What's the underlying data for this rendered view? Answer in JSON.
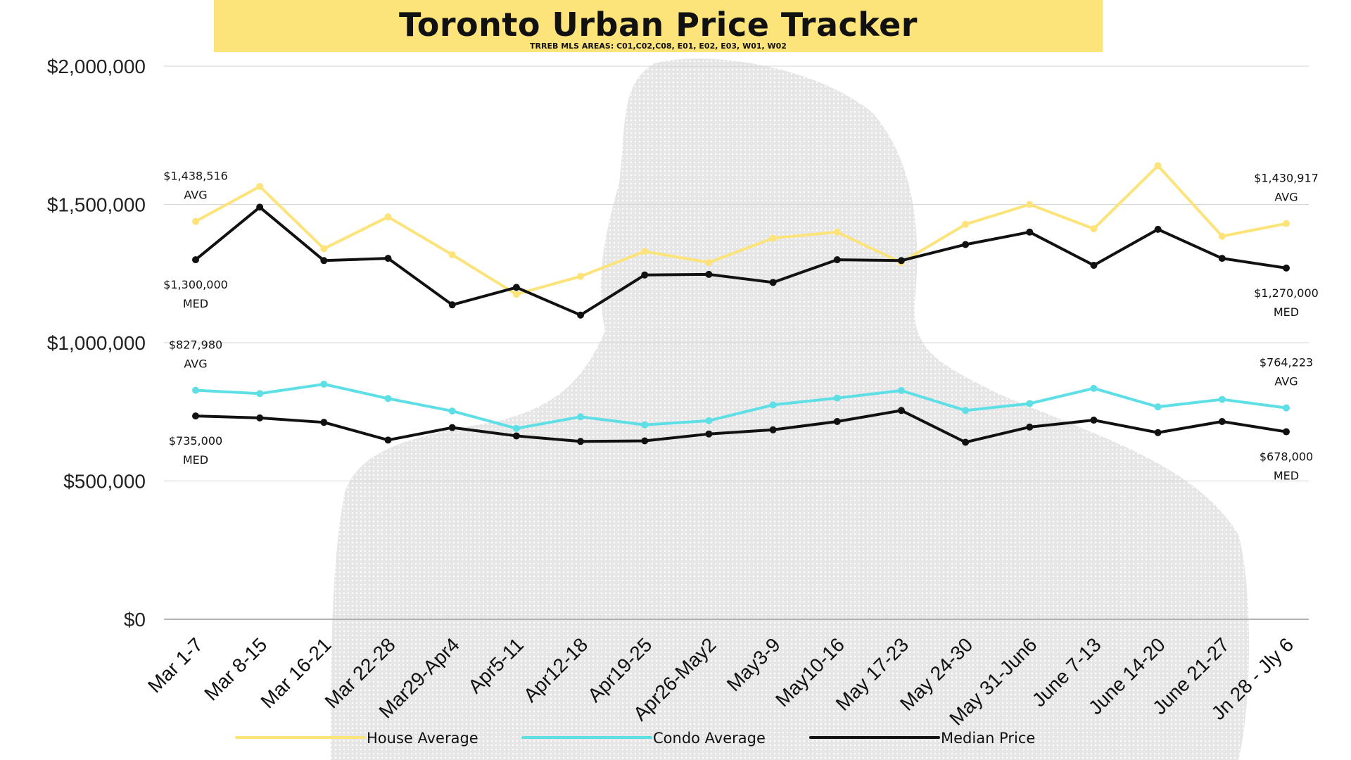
{
  "chart_data": {
    "type": "line",
    "title": "Toronto Urban Price Tracker",
    "subtitle": "TRREB MLS AREAS: C01,C02,C08, E01, E02, E03, W01, W02",
    "ylim": [
      0,
      2000000
    ],
    "yticks": [
      "$0",
      "$500,000",
      "$1,000,000",
      "$1,500,000",
      "$2,000,000"
    ],
    "ytick_values": [
      0,
      500000,
      1000000,
      1500000,
      2000000
    ],
    "grid": true,
    "legend_position": "bottom",
    "categories": [
      "Mar 1-7",
      "Mar 8-15",
      "Mar 16-21",
      "Mar 22-28",
      "Mar29-Apr4",
      "Apr5-11",
      "Apr12-18",
      "Apr19-25",
      "Apr26-May2",
      "May3-9",
      "May10-16",
      "May 17-23",
      "May 24-30",
      "May 31-Jun6",
      "June 7-13",
      "June 14-20",
      "June 21-27",
      "Jn 28 - Jly 6"
    ],
    "series": [
      {
        "name": "House Average",
        "color": "#fce37a",
        "values": [
          1438516,
          1565000,
          1340000,
          1455000,
          1318000,
          1175000,
          1240000,
          1330000,
          1290000,
          1378000,
          1400000,
          1290000,
          1428000,
          1500000,
          1412000,
          1640000,
          1385000,
          1430917
        ]
      },
      {
        "name": "House Median",
        "color": "#111111",
        "values": [
          1300000,
          1490000,
          1297000,
          1305000,
          1137000,
          1200000,
          1100000,
          1245000,
          1247000,
          1218000,
          1300000,
          1297000,
          1355000,
          1400000,
          1280000,
          1410000,
          1305000,
          1270000
        ]
      },
      {
        "name": "Condo Average",
        "color": "#5edfe6",
        "values": [
          827980,
          816000,
          850000,
          798000,
          753000,
          690000,
          732000,
          703000,
          718000,
          775000,
          800000,
          827000,
          755000,
          780000,
          835000,
          768000,
          795000,
          764223
        ]
      },
      {
        "name": "Condo Median",
        "color": "#111111",
        "values": [
          735000,
          728000,
          712000,
          648000,
          693000,
          663000,
          643000,
          645000,
          670000,
          685000,
          715000,
          755000,
          640000,
          695000,
          720000,
          675000,
          715000,
          678000
        ]
      }
    ],
    "annotations": [
      {
        "series": 0,
        "index": 0,
        "lines": [
          "$1,438,516",
          "AVG"
        ],
        "place": "above"
      },
      {
        "series": 0,
        "index": 17,
        "lines": [
          "$1,430,917",
          "AVG"
        ],
        "place": "above"
      },
      {
        "series": 1,
        "index": 0,
        "lines": [
          "$1,300,000",
          "MED"
        ],
        "place": "below"
      },
      {
        "series": 1,
        "index": 17,
        "lines": [
          "$1,270,000",
          "MED"
        ],
        "place": "below"
      },
      {
        "series": 2,
        "index": 0,
        "lines": [
          "$827,980",
          "AVG"
        ],
        "place": "above"
      },
      {
        "series": 2,
        "index": 17,
        "lines": [
          "$764,223",
          "AVG"
        ],
        "place": "above"
      },
      {
        "series": 3,
        "index": 0,
        "lines": [
          "$735,000",
          "MED"
        ],
        "place": "below"
      },
      {
        "series": 3,
        "index": 17,
        "lines": [
          "$678,000",
          "MED"
        ],
        "place": "below"
      }
    ],
    "legend": [
      {
        "label": "House Average",
        "color": "#fce37a"
      },
      {
        "label": "Condo Average",
        "color": "#5edfe6"
      },
      {
        "label": "Median Price",
        "color": "#111111"
      }
    ]
  }
}
